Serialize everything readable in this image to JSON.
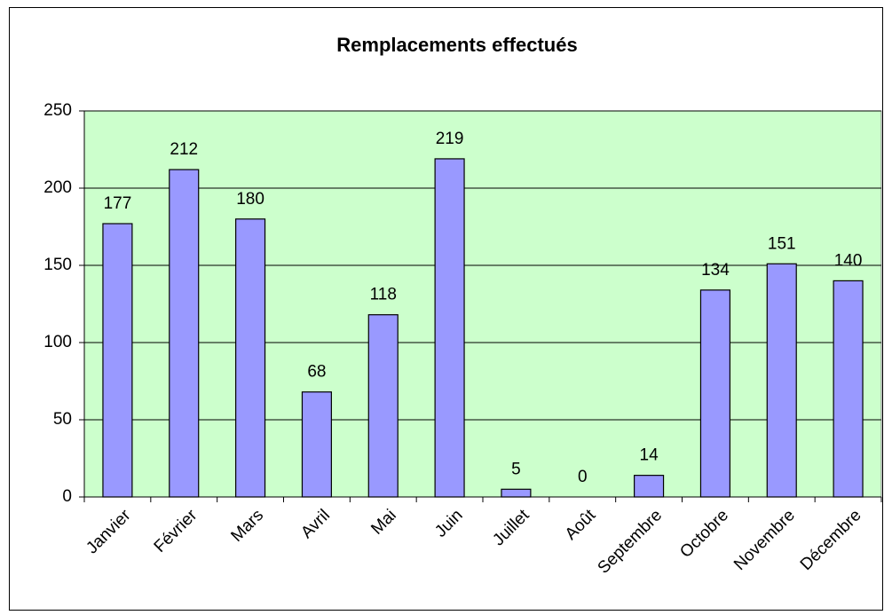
{
  "chart_data": {
    "type": "bar",
    "title": "Remplacements effectués",
    "categories": [
      "Janvier",
      "Février",
      "Mars",
      "Avril",
      "Mai",
      "Juin",
      "Juillet",
      "Août",
      "Septembre",
      "Octobre",
      "Novembre",
      "Décembre"
    ],
    "values": [
      177,
      212,
      180,
      68,
      118,
      219,
      5,
      0,
      14,
      134,
      151,
      140
    ],
    "color": "#9999ff",
    "plot_background": "#ccffcc",
    "ylim": [
      0,
      250
    ],
    "yticks": [
      0,
      50,
      100,
      150,
      200,
      250
    ],
    "grid": true
  }
}
